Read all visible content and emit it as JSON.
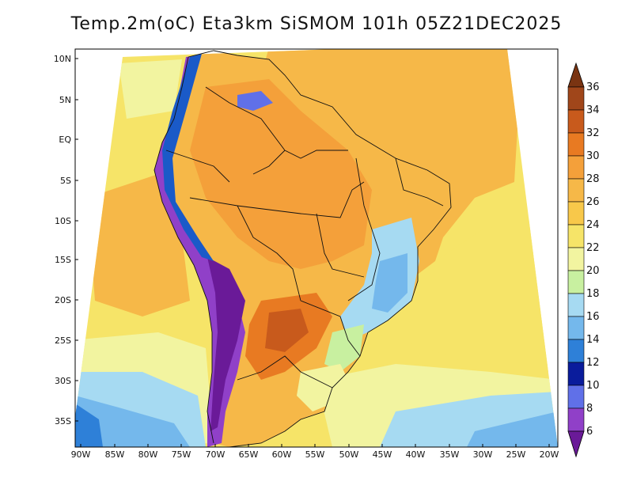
{
  "title": "Temp.2m(oC) Eta3km SiSMOM 101h 05Z21DEC2025",
  "map": {
    "lat_labels": [
      "10N",
      "5N",
      "EQ",
      "5S",
      "10S",
      "15S",
      "20S",
      "25S",
      "30S",
      "35S"
    ],
    "lon_labels": [
      "90W",
      "85W",
      "80W",
      "75W",
      "70W",
      "65W",
      "60W",
      "55W",
      "50W",
      "45W",
      "40W",
      "35W",
      "30W",
      "25W",
      "20W"
    ],
    "field": "2 m air temperature",
    "units": "oC"
  },
  "colorbar": {
    "labels": [
      "36",
      "34",
      "32",
      "30",
      "28",
      "26",
      "24",
      "22",
      "20",
      "18",
      "16",
      "14",
      "12",
      "10",
      "8",
      "6"
    ],
    "colors_top_to_bottom": [
      "#7a3412",
      "#a0461a",
      "#c85a1c",
      "#e87a22",
      "#f4a03a",
      "#f8c84a",
      "#f6e468",
      "#f2f4a0",
      "#c8f0a0",
      "#a6daf2",
      "#74b8ec",
      "#2e80d8",
      "#1a5ac8",
      "#0a1c9c",
      "#6070e8",
      "#9040c8",
      "#6a1a98"
    ]
  },
  "colors": {
    "frame": "#000000",
    "ocean_warm": "#f6b848",
    "ocean_mid": "#f6e468",
    "ocean_cool": "#f2f4a0",
    "ocean_cold": "#a6daf2",
    "ocean_coldest": "#2e80d8"
  }
}
